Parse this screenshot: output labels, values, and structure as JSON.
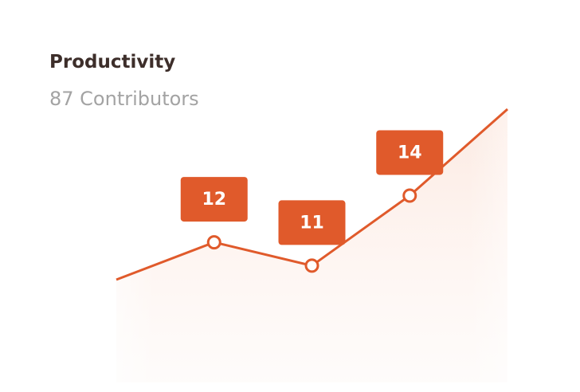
{
  "chart_data": {
    "type": "line",
    "title": "Productivity",
    "subtitle": "87 Contributors",
    "categories": [
      null,
      null,
      null,
      null,
      null
    ],
    "values": [
      10.4,
      12,
      11,
      14,
      17.7
    ],
    "value_labels": [
      null,
      "12",
      "11",
      "14",
      null
    ],
    "color": "#e05a2b",
    "ylim": [
      6,
      17.7
    ]
  }
}
